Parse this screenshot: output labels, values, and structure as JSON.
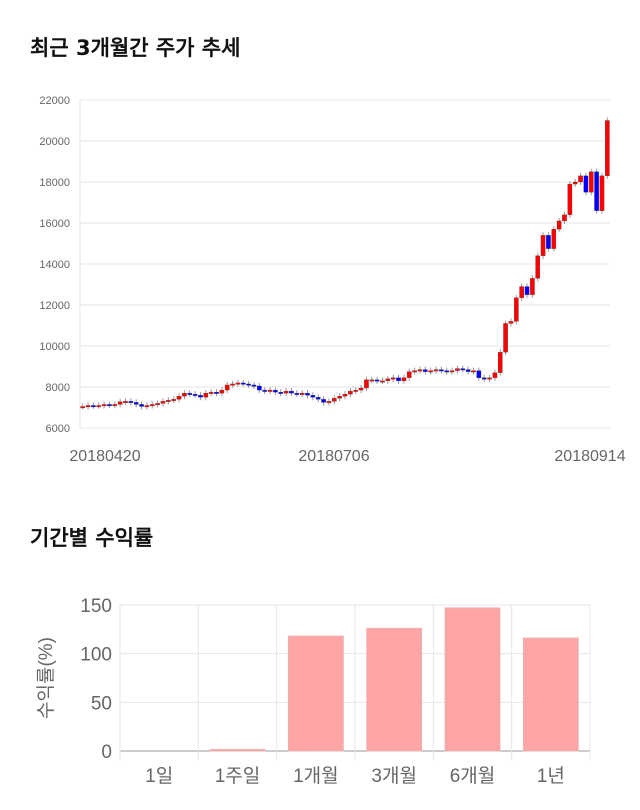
{
  "sections": {
    "price_title": "최근 3개월간 주가 추세",
    "return_title": "기간별 수익률"
  },
  "chart_data": [
    {
      "type": "candlestick",
      "title": "최근 3개월간 주가 추세",
      "ylim": [
        6000,
        22000
      ],
      "yticks": [
        6000,
        8000,
        10000,
        12000,
        14000,
        16000,
        18000,
        20000,
        22000
      ],
      "xticks": [
        "20180420",
        "20180706",
        "20180914"
      ],
      "up_color": "#ff0000",
      "down_color": "#0000ff",
      "close": [
        7050,
        7100,
        7080,
        7100,
        7150,
        7120,
        7150,
        7280,
        7300,
        7250,
        7150,
        7050,
        7100,
        7150,
        7200,
        7300,
        7350,
        7400,
        7550,
        7700,
        7650,
        7600,
        7500,
        7700,
        7750,
        7700,
        7850,
        8100,
        8150,
        8200,
        8150,
        8100,
        8050,
        7850,
        7800,
        7850,
        7750,
        7700,
        7800,
        7700,
        7650,
        7700,
        7600,
        7500,
        7400,
        7250,
        7300,
        7450,
        7550,
        7650,
        7800,
        7850,
        7950,
        8350,
        8350,
        8300,
        8300,
        8400,
        8450,
        8300,
        8450,
        8750,
        8800,
        8850,
        8750,
        8800,
        8850,
        8800,
        8750,
        8800,
        8900,
        8850,
        8750,
        8800,
        8450,
        8400,
        8450,
        8700,
        9700,
        11100,
        11200,
        12350,
        12900,
        12500,
        13300,
        14400,
        15400,
        14750,
        15700,
        16100,
        16400,
        17900,
        18000,
        18300,
        17500,
        18500,
        16600,
        18300,
        21000
      ]
    },
    {
      "type": "bar",
      "title": "기간별 수익률",
      "ylabel": "수익률(%)",
      "ylim": [
        0,
        150
      ],
      "yticks": [
        0,
        50,
        100,
        150
      ],
      "categories": [
        "1일",
        "1주일",
        "1개월",
        "3개월",
        "6개월",
        "1년"
      ],
      "values": [
        0,
        1.5,
        118,
        126,
        147,
        116
      ],
      "color": "#ffa5a5"
    }
  ]
}
